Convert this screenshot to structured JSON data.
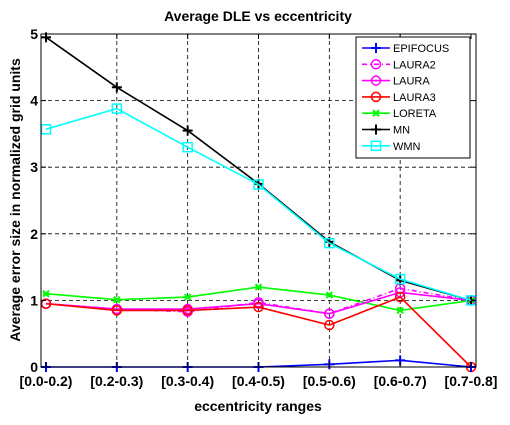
{
  "chart_data": {
    "type": "line",
    "title": "Average DLE vs eccentricity",
    "xlabel": "eccentricity ranges",
    "ylabel": "Average error size in normalized grid units",
    "categories": [
      "[0.0-0.2)",
      "[0.2-0.3)",
      "[0.3-0.4)",
      "[0.4-0.5)",
      "[0.5-0.6)",
      "[0.6-0.7)",
      "[0.7-0.8]"
    ],
    "ylim": [
      0,
      5
    ],
    "yticks": [
      0,
      1,
      2,
      3,
      4,
      5
    ],
    "grid": true,
    "legend_position": "top-right",
    "series": [
      {
        "name": "EPIFOCUS",
        "color": "#0000ff",
        "marker": "plus",
        "dash": "solid",
        "values": [
          0.0,
          0.0,
          0.0,
          0.0,
          0.04,
          0.1,
          0.0
        ]
      },
      {
        "name": "LAURA2",
        "color": "#ff00ff",
        "marker": "circle",
        "dash": "dashdot",
        "values": [
          0.95,
          0.87,
          0.83,
          0.97,
          0.8,
          1.18,
          1.0
        ]
      },
      {
        "name": "LAURA",
        "color": "#ff00ff",
        "marker": "circle",
        "dash": "solid",
        "values": [
          0.95,
          0.87,
          0.87,
          0.95,
          0.8,
          1.12,
          1.0
        ]
      },
      {
        "name": "LAURA3",
        "color": "#ff0000",
        "marker": "circle",
        "dash": "solid",
        "values": [
          0.95,
          0.85,
          0.85,
          0.9,
          0.63,
          1.05,
          0.0
        ]
      },
      {
        "name": "LORETA",
        "color": "#00ff00",
        "marker": "star",
        "dash": "solid",
        "values": [
          1.1,
          1.01,
          1.05,
          1.2,
          1.08,
          0.85,
          1.0
        ]
      },
      {
        "name": "MN",
        "color": "#000000",
        "marker": "plus",
        "dash": "solid",
        "values": [
          4.95,
          4.2,
          3.55,
          2.75,
          1.88,
          1.3,
          1.0
        ]
      },
      {
        "name": "WMN",
        "color": "#00ffff",
        "marker": "square",
        "dash": "solid",
        "values": [
          3.57,
          3.88,
          3.3,
          2.74,
          1.86,
          1.32,
          1.0
        ]
      }
    ]
  }
}
